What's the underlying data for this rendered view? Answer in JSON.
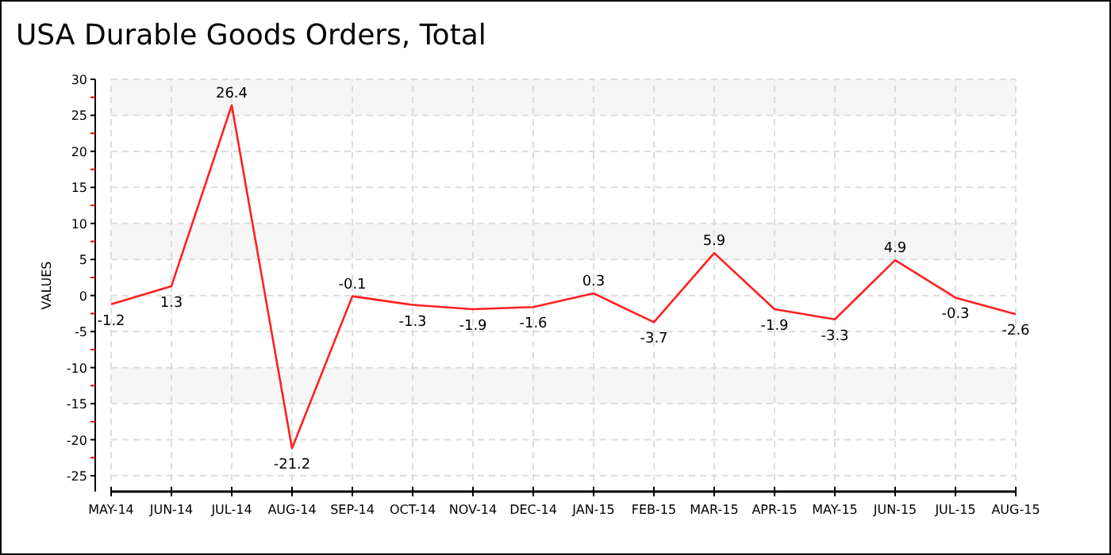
{
  "chart_data": {
    "type": "line",
    "title": "USA Durable Goods Orders, Total",
    "ylabel": "VALUES",
    "categories": [
      "MAY-14",
      "JUN-14",
      "JUL-14",
      "AUG-14",
      "SEP-14",
      "OCT-14",
      "NOV-14",
      "DEC-14",
      "JAN-15",
      "FEB-15",
      "MAR-15",
      "APR-15",
      "MAY-15",
      "JUN-15",
      "JUL-15",
      "AUG-15"
    ],
    "series": [
      {
        "color": "#ff2020",
        "values": [
          -1.2,
          1.3,
          26.4,
          -21.2,
          -0.1,
          -1.3,
          -1.9,
          -1.6,
          0.3,
          -3.7,
          5.9,
          -1.9,
          -3.3,
          4.9,
          -0.3,
          -2.6
        ]
      }
    ],
    "ylim": [
      -27.2,
      30
    ],
    "yticks": [
      -25,
      {
        "value": -22.5,
        "label": null
      },
      -20,
      {
        "value": -17.5,
        "label": null
      },
      -15,
      {
        "value": -12.5,
        "label": null
      },
      -10,
      {
        "value": -7.5,
        "label": null
      },
      -5,
      {
        "value": -2.5,
        "label": null
      },
      0,
      {
        "value": 2.5,
        "label": null
      },
      5,
      {
        "value": 7.5,
        "label": null
      },
      10,
      {
        "value": 12.5,
        "label": null
      },
      15,
      {
        "value": 17.5,
        "label": null
      },
      20,
      {
        "value": 22.5,
        "label": null
      },
      25,
      {
        "value": 27.5,
        "label": null
      },
      30
    ],
    "grid": true,
    "data_labels": true,
    "marker": "none",
    "line_style": "solid"
  }
}
